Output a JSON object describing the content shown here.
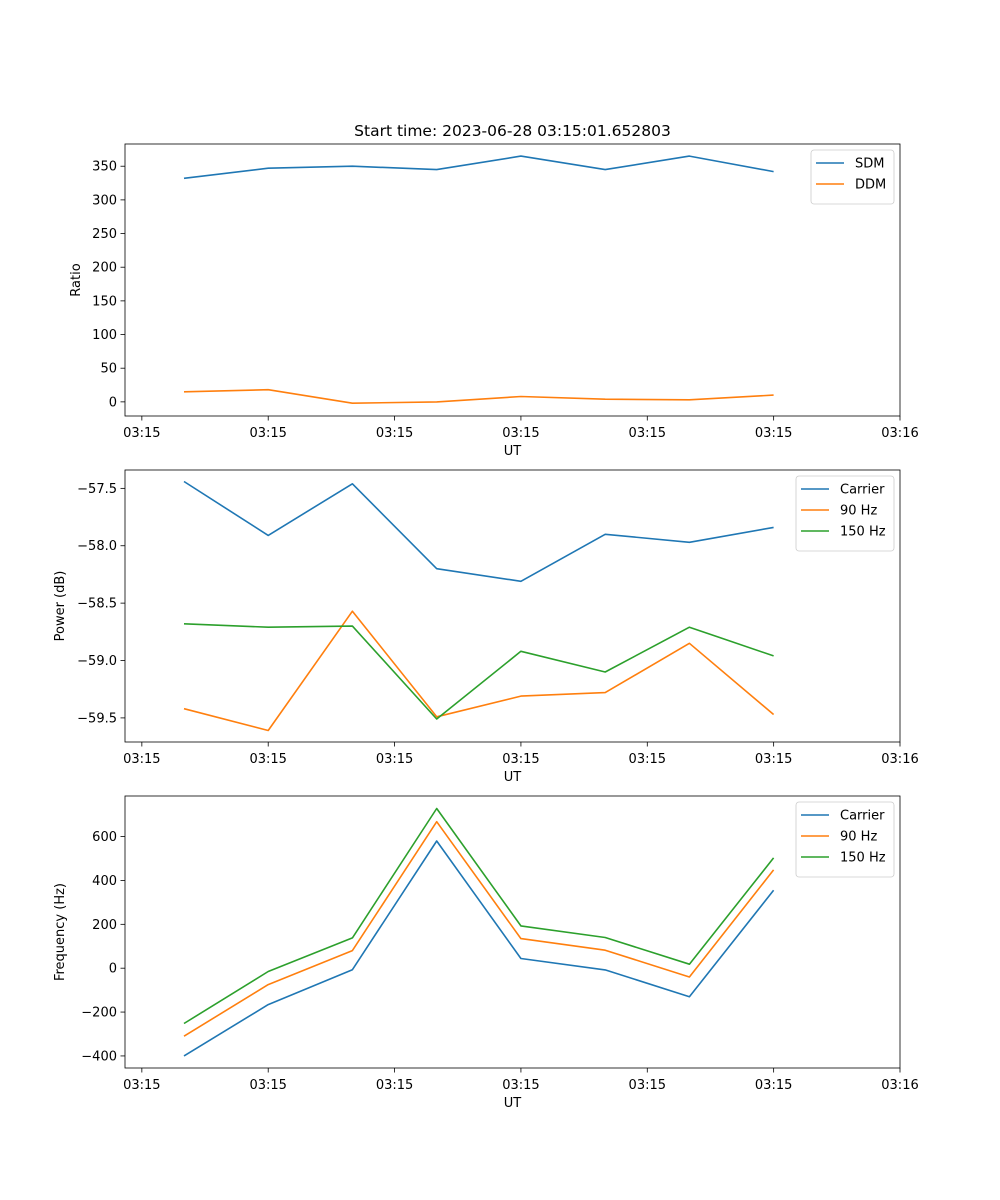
{
  "figure": {
    "title": "Start time: 2023-06-28 03:15:01.652803"
  },
  "chart_data": [
    {
      "type": "line",
      "title": "Start time: 2023-06-28 03:15:01.652803",
      "xlabel": "UT",
      "ylabel": "Ratio",
      "x_tick_labels": [
        "03:15",
        "03:15",
        "03:15",
        "03:15",
        "03:15",
        "03:15",
        "03:16"
      ],
      "x": [
        1,
        2,
        3,
        4,
        5,
        6,
        7,
        8
      ],
      "xlim": [
        0.3,
        9.5
      ],
      "x_tick_positions": [
        0.5,
        2.0,
        3.5,
        5.0,
        6.5,
        8.0,
        9.5
      ],
      "ylim": [
        -21,
        383
      ],
      "y_ticks": [
        0,
        50,
        100,
        150,
        200,
        250,
        300,
        350
      ],
      "grid": false,
      "legend_position": "upper right",
      "series": [
        {
          "name": "SDM",
          "color": "#1f77b4",
          "values": [
            332,
            347,
            350,
            345,
            365,
            345,
            365,
            342
          ]
        },
        {
          "name": "DDM",
          "color": "#ff7f0e",
          "values": [
            15,
            18,
            -2,
            0,
            8,
            4,
            3,
            10
          ]
        }
      ]
    },
    {
      "type": "line",
      "title": "",
      "xlabel": "UT",
      "ylabel": "Power (dB)",
      "x_tick_labels": [
        "03:15",
        "03:15",
        "03:15",
        "03:15",
        "03:15",
        "03:15",
        "03:16"
      ],
      "x": [
        1,
        2,
        3,
        4,
        5,
        6,
        7,
        8
      ],
      "xlim": [
        0.3,
        9.5
      ],
      "x_tick_positions": [
        0.5,
        2.0,
        3.5,
        5.0,
        6.5,
        8.0,
        9.5
      ],
      "ylim": [
        -59.71,
        -57.34
      ],
      "y_ticks": [
        -59.5,
        -59.0,
        -58.5,
        -58.0,
        -57.5
      ],
      "y_tick_labels": [
        "−59.5",
        "−59.0",
        "−58.5",
        "−58.0",
        "−57.5"
      ],
      "grid": false,
      "legend_position": "upper right",
      "series": [
        {
          "name": "Carrier",
          "color": "#1f77b4",
          "values": [
            -57.44,
            -57.91,
            -57.46,
            -58.2,
            -58.31,
            -57.9,
            -57.97,
            -57.84
          ]
        },
        {
          "name": "90 Hz",
          "color": "#ff7f0e",
          "values": [
            -59.42,
            -59.61,
            -58.57,
            -59.49,
            -59.31,
            -59.28,
            -58.85,
            -59.47
          ]
        },
        {
          "name": "150 Hz",
          "color": "#2ca02c",
          "values": [
            -58.68,
            -58.71,
            -58.7,
            -59.51,
            -58.92,
            -59.1,
            -58.71,
            -58.96
          ]
        }
      ]
    },
    {
      "type": "line",
      "title": "",
      "xlabel": "UT",
      "ylabel": "Frequency (Hz)",
      "x_tick_labels": [
        "03:15",
        "03:15",
        "03:15",
        "03:15",
        "03:15",
        "03:15",
        "03:16"
      ],
      "x": [
        1,
        2,
        3,
        4,
        5,
        6,
        7,
        8
      ],
      "xlim": [
        0.3,
        9.5
      ],
      "x_tick_positions": [
        0.5,
        2.0,
        3.5,
        5.0,
        6.5,
        8.0,
        9.5
      ],
      "ylim": [
        -455,
        785
      ],
      "y_ticks": [
        -400,
        -200,
        0,
        200,
        400,
        600
      ],
      "y_tick_labels": [
        "−400",
        "−200",
        "0",
        "200",
        "400",
        "600"
      ],
      "grid": false,
      "legend_position": "upper right",
      "series": [
        {
          "name": "Carrier",
          "color": "#1f77b4",
          "values": [
            -400,
            -166,
            -7,
            580,
            44,
            -8,
            -130,
            355
          ]
        },
        {
          "name": "90 Hz",
          "color": "#ff7f0e",
          "values": [
            -310,
            -75,
            80,
            668,
            135,
            82,
            -40,
            448
          ]
        },
        {
          "name": "150 Hz",
          "color": "#2ca02c",
          "values": [
            -252,
            -15,
            138,
            728,
            193,
            140,
            18,
            503
          ]
        }
      ]
    }
  ]
}
